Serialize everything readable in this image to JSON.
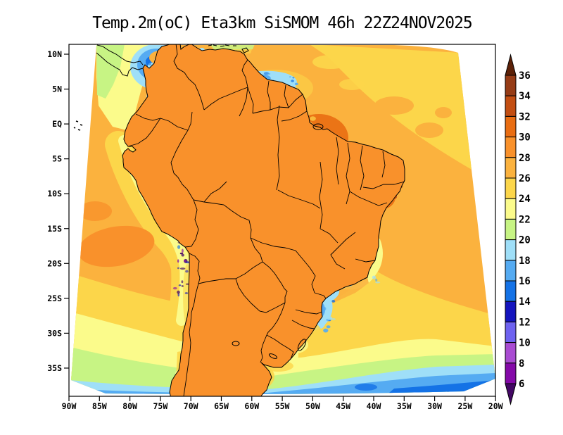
{
  "title": "Temp.2m(oC) Eta3km SiSMOM 46h 22Z24NOV2025",
  "axes": {
    "lat_labels": [
      "10N",
      "5N",
      "EQ",
      "5S",
      "10S",
      "15S",
      "20S",
      "25S",
      "30S",
      "35S"
    ],
    "lon_labels": [
      "90W",
      "85W",
      "80W",
      "75W",
      "70W",
      "65W",
      "60W",
      "55W",
      "50W",
      "45W",
      "40W",
      "35W",
      "30W",
      "25W",
      "20W"
    ]
  },
  "colorbar": {
    "labels": [
      "36",
      "34",
      "32",
      "30",
      "28",
      "26",
      "24",
      "22",
      "20",
      "18",
      "16",
      "14",
      "12",
      "10",
      "8",
      "6"
    ],
    "segment_colors_top_to_bottom": [
      "#963C16",
      "#C34E12",
      "#E96D12",
      "#F9912B",
      "#FBB23E",
      "#FCD64A",
      "#FBFB8B",
      "#C7F484",
      "#9FDFF8",
      "#55ABF2",
      "#1472E6",
      "#1414BE",
      "#6E62F0",
      "#A94BD2",
      "#8409A8"
    ],
    "above_max_color": "#5C2108",
    "below_min_color": "#430764"
  }
}
